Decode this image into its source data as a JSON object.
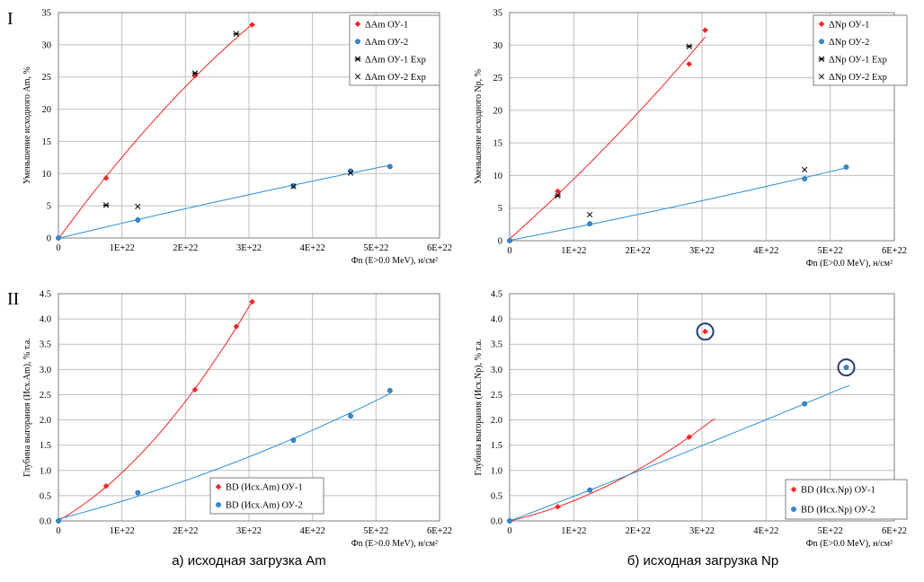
{
  "row_labels": [
    "I",
    "II"
  ],
  "captions": {
    "left": "а) исходная загрузка Am",
    "right": "б) исходная загрузка Np"
  },
  "colors": {
    "ou1": "#ff2020",
    "ou2": "#2a8fd8",
    "exp": "#000000",
    "highlight": "#1f3f7a",
    "grid": "#bfbfbf"
  },
  "chart_data": [
    {
      "id": "am_reduction",
      "type": "scatter",
      "title": "",
      "xlabel": "Фn (E>0.0 MeV), н/см²",
      "ylabel": "Уменьшение исходного Am, %",
      "xlim": [
        0,
        6e+22
      ],
      "ylim": [
        0,
        35
      ],
      "xticks": [
        "0",
        "1E+22",
        "2E+22",
        "3E+22",
        "4E+22",
        "5E+22",
        "6E+22"
      ],
      "yticks": [
        "0",
        "5",
        "10",
        "15",
        "20",
        "25",
        "30",
        "35"
      ],
      "grid": true,
      "legend_position": "top-right",
      "series": [
        {
          "name": "ΔAm ОУ-1",
          "marker": "diamond",
          "color": "#ff2020",
          "fit": true,
          "x": [
            0,
            7.5e+21,
            2.15e+22,
            3.05e+22
          ],
          "y": [
            0,
            9.3,
            25.2,
            33.1
          ]
        },
        {
          "name": "ΔAm ОУ-2",
          "marker": "circle",
          "color": "#2a8fd8",
          "fit": true,
          "x": [
            0,
            1.25e+22,
            3.7e+22,
            4.6e+22,
            5.22e+22
          ],
          "y": [
            0,
            2.8,
            8.1,
            10.4,
            11.1
          ]
        },
        {
          "name": "ΔAm ОУ-1 Exp",
          "marker": "star",
          "color": "#000000",
          "fit": false,
          "x": [
            7.5e+21,
            2.15e+22,
            2.8e+22
          ],
          "y": [
            5.1,
            25.6,
            31.7
          ]
        },
        {
          "name": "ΔAm ОУ-2 Exp",
          "marker": "x",
          "color": "#000000",
          "fit": false,
          "x": [
            1.25e+22,
            3.7e+22,
            4.6e+22
          ],
          "y": [
            4.9,
            8.0,
            10.1
          ]
        }
      ]
    },
    {
      "id": "np_reduction",
      "type": "scatter",
      "title": "",
      "xlabel": "Фn (E>0.0 MeV), н/см²",
      "ylabel": "Уменьшение исходного Np, %",
      "xlim": [
        0,
        6e+22
      ],
      "ylim": [
        0,
        35
      ],
      "xticks": [
        "0",
        "1E+22",
        "2E+22",
        "3E+22",
        "4E+22",
        "5E+22",
        "6E+22"
      ],
      "yticks": [
        "0",
        "5",
        "10",
        "15",
        "20",
        "25",
        "30",
        "35"
      ],
      "grid": true,
      "legend_position": "top-right",
      "series": [
        {
          "name": "ΔNp ОУ-1",
          "marker": "diamond",
          "color": "#ff2020",
          "fit": true,
          "x": [
            0,
            7.5e+21,
            2.8e+22,
            3.05e+22
          ],
          "y": [
            0,
            7.6,
            27.1,
            32.3
          ]
        },
        {
          "name": "ΔNp ОУ-2",
          "marker": "circle",
          "color": "#2a8fd8",
          "fit": true,
          "x": [
            0,
            1.25e+22,
            4.6e+22,
            5.25e+22
          ],
          "y": [
            0,
            2.6,
            9.5,
            11.3
          ]
        },
        {
          "name": "ΔNp ОУ-1 Exp",
          "marker": "star",
          "color": "#000000",
          "fit": false,
          "x": [
            7.5e+21,
            2.8e+22
          ],
          "y": [
            6.9,
            29.8
          ]
        },
        {
          "name": "ΔNp ОУ-2 Exp",
          "marker": "x",
          "color": "#000000",
          "fit": false,
          "x": [
            1.25e+22,
            4.6e+22
          ],
          "y": [
            4.0,
            10.9
          ]
        }
      ]
    },
    {
      "id": "am_burnup",
      "type": "scatter",
      "title": "",
      "xlabel": "Фn (E>0.0 MeV), н/см²",
      "ylabel": "Глубина выгорания (Исх.Am), % т.а.",
      "xlim": [
        0,
        6e+22
      ],
      "ylim": [
        0,
        4.5
      ],
      "xticks": [
        "0",
        "1E+22",
        "2E+22",
        "3E+22",
        "4E+22",
        "5E+22",
        "6E+22"
      ],
      "yticks": [
        "0.0",
        "0.5",
        "1.0",
        "1.5",
        "2.0",
        "2.5",
        "3.0",
        "3.5",
        "4.0",
        "4.5"
      ],
      "grid": true,
      "legend_position": "bottom-center",
      "series": [
        {
          "name": "BD (Исх.Am) ОУ-1",
          "marker": "diamond",
          "color": "#ff2020",
          "fit": true,
          "x": [
            0,
            7.5e+21,
            2.15e+22,
            2.8e+22,
            3.05e+22
          ],
          "y": [
            0,
            0.69,
            2.6,
            3.85,
            4.34
          ]
        },
        {
          "name": "BD (Исх.Am) ОУ-2",
          "marker": "circle",
          "color": "#2a8fd8",
          "fit": true,
          "x": [
            0,
            1.25e+22,
            3.7e+22,
            4.6e+22,
            5.22e+22
          ],
          "y": [
            0,
            0.56,
            1.6,
            2.08,
            2.58
          ]
        }
      ]
    },
    {
      "id": "np_burnup",
      "type": "scatter",
      "title": "",
      "xlabel": "Фn (E>0.0 MeV), н/см²",
      "ylabel": "Глубина выгорания (Исх.Np), % т.а.",
      "xlim": [
        0,
        6e+22
      ],
      "ylim": [
        0,
        4.5
      ],
      "xticks": [
        "0",
        "1E+22",
        "2E+22",
        "3E+22",
        "4E+22",
        "5E+22",
        "6E+22"
      ],
      "yticks": [
        "0.0",
        "0.5",
        "1.0",
        "1.5",
        "2.0",
        "2.5",
        "3.0",
        "3.5",
        "4.0",
        "4.5"
      ],
      "grid": true,
      "legend_position": "bottom-right",
      "series": [
        {
          "name": "BD (Исх.Np) ОУ-1",
          "marker": "diamond",
          "color": "#ff2020",
          "fit": true,
          "x": [
            0,
            7.5e+21,
            2.8e+22
          ],
          "y": [
            0,
            0.28,
            1.66
          ],
          "fit_end": [
            3.2e+22,
            2.02
          ],
          "outliers": [
            {
              "x": 3.05e+22,
              "y": 3.75
            }
          ]
        },
        {
          "name": "BD (Исх.Np) ОУ-2",
          "marker": "circle",
          "color": "#2a8fd8",
          "fit": true,
          "x": [
            0,
            1.25e+22,
            4.6e+22
          ],
          "y": [
            0,
            0.61,
            2.32
          ],
          "fit_end": [
            5.3e+22,
            2.68
          ],
          "outliers": [
            {
              "x": 5.25e+22,
              "y": 3.04
            }
          ]
        }
      ]
    }
  ]
}
